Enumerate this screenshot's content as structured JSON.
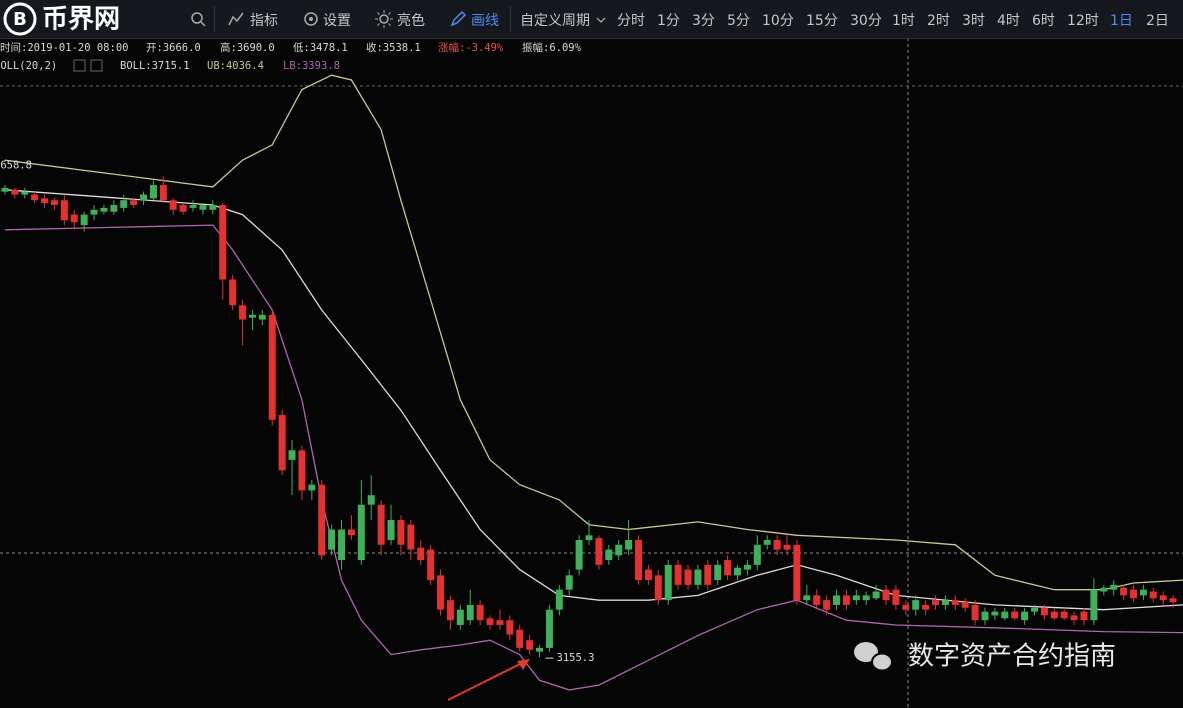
{
  "toolbar": {
    "logo_mark": "B",
    "logo": "币界网",
    "items": [
      "指标",
      "设置",
      "亮色",
      "画线"
    ],
    "custom_period": "自定义周期",
    "periods": [
      "分时",
      "1分",
      "3分",
      "5分",
      "10分",
      "15分",
      "30分",
      "1时",
      "2时",
      "3时",
      "4时",
      "6时",
      "12时",
      "1日",
      "2日"
    ]
  },
  "info": {
    "time": "时间:2019-01-20 08:00",
    "open": "开:3666.0",
    "high": "高:3690.0",
    "low": "低:3478.1",
    "close": "收:3538.1",
    "change": "涨幅:-3.49%",
    "amplitude": "振幅:6.09%"
  },
  "indicator": {
    "name": "BOLL(20,2)",
    "boll": "BOLL:3715.1",
    "ub": "UB:4036.4",
    "lb": "LB:3393.8"
  },
  "watermark": "数字资产合约指南",
  "chart_data": {
    "type": "candlestick",
    "xlim": [
      -0.5,
      119
    ],
    "ylim": [
      3102,
      3760
    ],
    "up_color": "#3fb15a",
    "down_color": "#e5312f",
    "open": [
      3643,
      3645,
      3640,
      3640,
      3636,
      3634,
      3634,
      3619,
      3608,
      3619,
      3622,
      3622,
      3626,
      3634,
      3634,
      3636,
      3650,
      3634,
      3629,
      3626,
      3624,
      3624,
      3629,
      3551,
      3524,
      3511,
      3509,
      3514,
      3409,
      3362,
      3372,
      3330,
      3336,
      3268,
      3257,
      3289,
      3257,
      3315,
      3315,
      3278,
      3299,
      3294,
      3270,
      3268,
      3241,
      3215,
      3189,
      3194,
      3210,
      3196,
      3194,
      3194,
      3184,
      3173,
      3161,
      3165,
      3205,
      3226,
      3247,
      3278,
      3280,
      3257,
      3262,
      3268,
      3278,
      3247,
      3241,
      3215,
      3252,
      3247,
      3231,
      3252,
      3236,
      3257,
      3241,
      3247,
      3252,
      3273,
      3278,
      3273,
      3273,
      3215,
      3220,
      3215,
      3210,
      3220,
      3215,
      3215,
      3217,
      3226,
      3226,
      3210,
      3205,
      3210,
      3215,
      3210,
      3215,
      3213,
      3210,
      3194,
      3199,
      3196,
      3203,
      3194,
      3203,
      3207,
      3203,
      3203,
      3199,
      3203,
      3194,
      3224,
      3226,
      3228,
      3226,
      3220,
      3224,
      3220,
      3217
    ],
    "high": [
      3650,
      3647,
      3647,
      3643,
      3640,
      3636,
      3640,
      3624,
      3622,
      3629,
      3629,
      3634,
      3640,
      3636,
      3643,
      3655,
      3658.8,
      3636,
      3631,
      3634,
      3631,
      3634,
      3631,
      3556,
      3530,
      3519,
      3519,
      3519,
      3414,
      3383,
      3377,
      3341,
      3341,
      3294,
      3299,
      3304,
      3341,
      3346,
      3320,
      3315,
      3304,
      3299,
      3278,
      3273,
      3247,
      3220,
      3210,
      3226,
      3215,
      3199,
      3205,
      3199,
      3189,
      3179,
      3168,
      3210,
      3231,
      3247,
      3283,
      3299,
      3283,
      3273,
      3278,
      3299,
      3283,
      3252,
      3247,
      3257,
      3257,
      3252,
      3252,
      3257,
      3257,
      3262,
      3252,
      3257,
      3283,
      3283,
      3283,
      3283,
      3278,
      3231,
      3226,
      3220,
      3226,
      3226,
      3226,
      3224,
      3231,
      3231,
      3231,
      3215,
      3220,
      3215,
      3220,
      3220,
      3220,
      3217,
      3215,
      3207,
      3207,
      3207,
      3207,
      3207,
      3210,
      3210,
      3207,
      3207,
      3203,
      3207,
      3238,
      3231,
      3236,
      3231,
      3231,
      3231,
      3228,
      3224,
      3220
    ],
    "low": [
      3640,
      3636,
      3636,
      3631,
      3626,
      3624,
      3608,
      3603,
      3601,
      3613,
      3619,
      3619,
      3622,
      3626,
      3629,
      3634,
      3631,
      3619,
      3619,
      3622,
      3619,
      3619,
      3530,
      3519,
      3482,
      3498,
      3503,
      3398,
      3346,
      3325,
      3320,
      3320,
      3257,
      3262,
      3247,
      3278,
      3252,
      3299,
      3262,
      3273,
      3262,
      3257,
      3252,
      3231,
      3199,
      3184,
      3184,
      3189,
      3189,
      3184,
      3184,
      3173,
      3161,
      3158,
      3155.3,
      3161,
      3199,
      3220,
      3241,
      3273,
      3247,
      3252,
      3257,
      3262,
      3231,
      3231,
      3210,
      3210,
      3226,
      3226,
      3226,
      3226,
      3231,
      3236,
      3236,
      3241,
      3247,
      3268,
      3262,
      3262,
      3210,
      3210,
      3205,
      3199,
      3205,
      3205,
      3210,
      3210,
      3215,
      3210,
      3205,
      3199,
      3199,
      3199,
      3205,
      3205,
      3205,
      3203,
      3189,
      3189,
      3194,
      3194,
      3194,
      3189,
      3199,
      3194,
      3194,
      3194,
      3189,
      3189,
      3189,
      3220,
      3220,
      3215,
      3213,
      3215,
      3213,
      3210,
      3207
    ],
    "close": [
      3647,
      3640,
      3643,
      3634,
      3631,
      3629,
      3613,
      3611,
      3619,
      3624,
      3626,
      3629,
      3634,
      3629,
      3640,
      3650,
      3634,
      3624,
      3622,
      3629,
      3629,
      3629,
      3551,
      3524,
      3509,
      3514,
      3514,
      3404,
      3351,
      3372,
      3330,
      3336,
      3262,
      3289,
      3289,
      3283,
      3315,
      3325,
      3273,
      3299,
      3273,
      3268,
      3257,
      3236,
      3205,
      3194,
      3205,
      3210,
      3194,
      3189,
      3189,
      3179,
      3165,
      3163,
      3165,
      3205,
      3226,
      3241,
      3278,
      3283,
      3252,
      3268,
      3273,
      3278,
      3236,
      3236,
      3215,
      3252,
      3231,
      3231,
      3247,
      3231,
      3252,
      3241,
      3249,
      3252,
      3273,
      3278,
      3268,
      3268,
      3215,
      3220,
      3210,
      3205,
      3220,
      3210,
      3220,
      3220,
      3224,
      3215,
      3210,
      3205,
      3215,
      3205,
      3210,
      3215,
      3210,
      3207,
      3194,
      3203,
      3203,
      3203,
      3196,
      3203,
      3207,
      3199,
      3196,
      3196,
      3194,
      3194,
      3226,
      3228,
      3231,
      3220,
      3217,
      3226,
      3217,
      3215,
      3213
    ],
    "bands": [
      {
        "color": "#c9c98c",
        "x": [
          0,
          21,
          24,
          27,
          30,
          33,
          35,
          38,
          40,
          43,
          46,
          49,
          52,
          56,
          59,
          63,
          70,
          75,
          80,
          90,
          96,
          100,
          106,
          111,
          114,
          119
        ],
        "values": [
          3676,
          3648,
          3676,
          3692,
          3750,
          3765,
          3760,
          3708,
          3634,
          3530,
          3425,
          3362,
          3336,
          3320,
          3294,
          3289,
          3297,
          3289,
          3283,
          3278,
          3273,
          3241,
          3226,
          3226,
          3233,
          3236
        ]
      },
      {
        "color": "#dcdcdc",
        "x": [
          0,
          21,
          24,
          28,
          32,
          36,
          40,
          44,
          48,
          52,
          56,
          60,
          65,
          70,
          76,
          80,
          84,
          90,
          100,
          111,
          119
        ],
        "values": [
          3645,
          3629,
          3619,
          3582,
          3519,
          3467,
          3414,
          3351,
          3289,
          3247,
          3220,
          3215,
          3215,
          3220,
          3241,
          3252,
          3241,
          3220,
          3210,
          3205,
          3210
        ]
      },
      {
        "color": "#b064b4",
        "x": [
          0,
          21,
          23,
          27,
          30,
          32,
          34,
          36,
          39,
          42,
          46,
          49,
          52,
          54,
          57,
          60,
          65,
          70,
          76,
          80,
          85,
          90,
          100,
          111,
          119
        ],
        "values": [
          3603,
          3608,
          3582,
          3519,
          3425,
          3320,
          3236,
          3194,
          3158,
          3163,
          3168,
          3173,
          3158,
          3131,
          3121,
          3126,
          3152,
          3178,
          3205,
          3215,
          3194,
          3189,
          3186,
          3182,
          3181
        ]
      }
    ],
    "max_index": 16,
    "min_index": 54
  }
}
